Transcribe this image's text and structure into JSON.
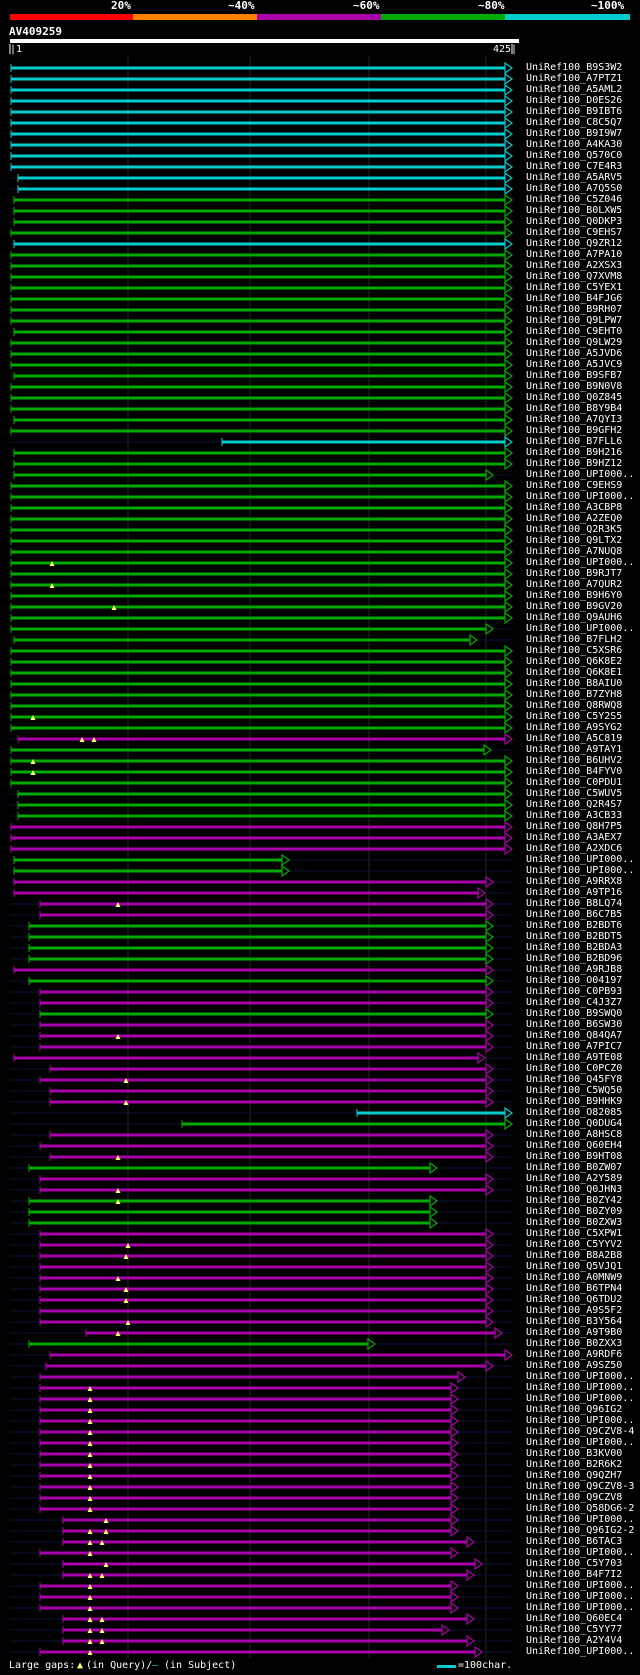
{
  "header": {
    "percent_labels": [
      "20%",
      "~40%",
      "~60%",
      "~80%",
      "~100%"
    ],
    "colors": [
      "#ff0000",
      "#ff8000",
      "#aa00aa",
      "#00aa00",
      "#00cccc"
    ]
  },
  "query": {
    "name": "AV409259",
    "start_label": "|1",
    "end_label": "425|"
  },
  "hits": [
    {
      "id": "UniRef100_B9S3W2",
      "x1": 11,
      "x2": 512,
      "c": "cyan"
    },
    {
      "id": "UniRef100_A7PTZ1",
      "x1": 11,
      "x2": 512,
      "c": "cyan"
    },
    {
      "id": "UniRef100_A5AML2",
      "x1": 11,
      "x2": 512,
      "c": "cyan"
    },
    {
      "id": "UniRef100_D0ES26",
      "x1": 11,
      "x2": 512,
      "c": "cyan"
    },
    {
      "id": "UniRef100_B9IBT6",
      "x1": 11,
      "x2": 512,
      "c": "cyan"
    },
    {
      "id": "UniRef100_C8C5Q7",
      "x1": 11,
      "x2": 512,
      "c": "cyan"
    },
    {
      "id": "UniRef100_B9I9W7",
      "x1": 11,
      "x2": 512,
      "c": "cyan"
    },
    {
      "id": "UniRef100_A4KA30",
      "x1": 11,
      "x2": 512,
      "c": "cyan"
    },
    {
      "id": "UniRef100_Q570C0",
      "x1": 11,
      "x2": 512,
      "c": "cyan"
    },
    {
      "id": "UniRef100_C7E4R3",
      "x1": 11,
      "x2": 512,
      "c": "cyan"
    },
    {
      "id": "UniRef100_A5ARV5",
      "x1": 18,
      "x2": 512,
      "c": "cyan"
    },
    {
      "id": "UniRef100_A7Q5S0",
      "x1": 18,
      "x2": 512,
      "c": "cyan"
    },
    {
      "id": "UniRef100_C5Z046",
      "x1": 14,
      "x2": 512,
      "c": "green"
    },
    {
      "id": "UniRef100_B0LXW5",
      "x1": 14,
      "x2": 512,
      "c": "green"
    },
    {
      "id": "UniRef100_Q0DKP3",
      "x1": 14,
      "x2": 512,
      "c": "green"
    },
    {
      "id": "UniRef100_C9EHS7",
      "x1": 11,
      "x2": 512,
      "c": "green"
    },
    {
      "id": "UniRef100_Q9ZR12",
      "x1": 14,
      "x2": 512,
      "c": "cyan"
    },
    {
      "id": "UniRef100_A7PA10",
      "x1": 11,
      "x2": 512,
      "c": "green"
    },
    {
      "id": "UniRef100_A2XSX3",
      "x1": 11,
      "x2": 512,
      "c": "green"
    },
    {
      "id": "UniRef100_Q7XVM8",
      "x1": 11,
      "x2": 512,
      "c": "green"
    },
    {
      "id": "UniRef100_C5YEX1",
      "x1": 11,
      "x2": 512,
      "c": "green"
    },
    {
      "id": "UniRef100_B4FJG6",
      "x1": 11,
      "x2": 512,
      "c": "green"
    },
    {
      "id": "UniRef100_B9RH07",
      "x1": 11,
      "x2": 512,
      "c": "green"
    },
    {
      "id": "UniRef100_Q9LPW7",
      "x1": 11,
      "x2": 512,
      "c": "green"
    },
    {
      "id": "UniRef100_C9EHT0",
      "x1": 14,
      "x2": 512,
      "c": "green"
    },
    {
      "id": "UniRef100_Q9LW29",
      "x1": 11,
      "x2": 512,
      "c": "green"
    },
    {
      "id": "UniRef100_A5JVD6",
      "x1": 11,
      "x2": 512,
      "c": "green"
    },
    {
      "id": "UniRef100_A5JVC9",
      "x1": 11,
      "x2": 512,
      "c": "green"
    },
    {
      "id": "UniRef100_B9SFB7",
      "x1": 14,
      "x2": 512,
      "c": "green"
    },
    {
      "id": "UniRef100_B9N0V8",
      "x1": 11,
      "x2": 512,
      "c": "green"
    },
    {
      "id": "UniRef100_Q0Z845",
      "x1": 11,
      "x2": 512,
      "c": "green"
    },
    {
      "id": "UniRef100_B8Y9B4",
      "x1": 11,
      "x2": 512,
      "c": "green"
    },
    {
      "id": "UniRef100_A7QYI3",
      "x1": 14,
      "x2": 512,
      "c": "green"
    },
    {
      "id": "UniRef100_B9GFH2",
      "x1": 11,
      "x2": 512,
      "c": "green"
    },
    {
      "id": "UniRef100_B7FLL6",
      "x1": 222,
      "x2": 512,
      "c": "cyan"
    },
    {
      "id": "UniRef100_B9H216",
      "x1": 14,
      "x2": 512,
      "c": "green"
    },
    {
      "id": "UniRef100_B9HZ12",
      "x1": 14,
      "x2": 512,
      "c": "green"
    },
    {
      "id": "UniRef100_UPI000..",
      "x1": 14,
      "x2": 493,
      "c": "green"
    },
    {
      "id": "UniRef100_C9EHS9",
      "x1": 11,
      "x2": 512,
      "c": "green"
    },
    {
      "id": "UniRef100_UPI000..",
      "x1": 11,
      "x2": 512,
      "c": "green"
    },
    {
      "id": "UniRef100_A3CBP8",
      "x1": 11,
      "x2": 512,
      "c": "green"
    },
    {
      "id": "UniRef100_A2ZEQ0",
      "x1": 11,
      "x2": 512,
      "c": "green"
    },
    {
      "id": "UniRef100_Q2R3K5",
      "x1": 11,
      "x2": 512,
      "c": "green"
    },
    {
      "id": "UniRef100_Q9LTX2",
      "x1": 11,
      "x2": 512,
      "c": "green"
    },
    {
      "id": "UniRef100_A7NUQ8",
      "x1": 11,
      "x2": 512,
      "c": "green"
    },
    {
      "id": "UniRef100_UPI000..",
      "x1": 11,
      "x2": 512,
      "c": "green",
      "gap": 52
    },
    {
      "id": "UniRef100_B9RJT7",
      "x1": 11,
      "x2": 512,
      "c": "green"
    },
    {
      "id": "UniRef100_A7QUR2",
      "x1": 11,
      "x2": 512,
      "c": "green",
      "gap": 52
    },
    {
      "id": "UniRef100_B9H6Y0",
      "x1": 11,
      "x2": 512,
      "c": "green"
    },
    {
      "id": "UniRef100_B9GV20",
      "x1": 11,
      "x2": 512,
      "c": "green",
      "gap": 114
    },
    {
      "id": "UniRef100_Q9AUH6",
      "x1": 11,
      "x2": 512,
      "c": "green"
    },
    {
      "id": "UniRef100_UPI000..",
      "x1": 11,
      "x2": 493,
      "c": "green"
    },
    {
      "id": "UniRef100_B7FLH2",
      "x1": 14,
      "x2": 477,
      "c": "green"
    },
    {
      "id": "UniRef100_C5XSR6",
      "x1": 11,
      "x2": 512,
      "c": "green"
    },
    {
      "id": "UniRef100_Q6K8E2",
      "x1": 11,
      "x2": 512,
      "c": "green"
    },
    {
      "id": "UniRef100_Q6K8E1",
      "x1": 11,
      "x2": 512,
      "c": "green"
    },
    {
      "id": "UniRef100_B8AIU0",
      "x1": 11,
      "x2": 512,
      "c": "green"
    },
    {
      "id": "UniRef100_B7ZYH8",
      "x1": 11,
      "x2": 512,
      "c": "green"
    },
    {
      "id": "UniRef100_Q8RWQ8",
      "x1": 11,
      "x2": 512,
      "c": "green"
    },
    {
      "id": "UniRef100_C5Y2S5",
      "x1": 11,
      "x2": 512,
      "c": "green",
      "gap": 33
    },
    {
      "id": "UniRef100_A9SYG2",
      "x1": 11,
      "x2": 512,
      "c": "green"
    },
    {
      "id": "UniRef100_A5C819",
      "x1": 18,
      "x2": 512,
      "c": "purple",
      "gap": 82,
      "gap2": 94
    },
    {
      "id": "UniRef100_A9TAY1",
      "x1": 11,
      "x2": 491,
      "c": "green"
    },
    {
      "id": "UniRef100_B6UHV2",
      "x1": 11,
      "x2": 512,
      "c": "green",
      "gap": 33
    },
    {
      "id": "UniRef100_B4FYV0",
      "x1": 11,
      "x2": 512,
      "c": "green",
      "gap": 33
    },
    {
      "id": "UniRef100_C0PDU1",
      "x1": 11,
      "x2": 512,
      "c": "green"
    },
    {
      "id": "UniRef100_C5WUV5",
      "x1": 18,
      "x2": 512,
      "c": "green"
    },
    {
      "id": "UniRef100_Q2R4S7",
      "x1": 18,
      "x2": 512,
      "c": "green"
    },
    {
      "id": "UniRef100_A3CB33",
      "x1": 18,
      "x2": 512,
      "c": "green"
    },
    {
      "id": "UniRef100_Q8H7P5",
      "x1": 11,
      "x2": 512,
      "c": "purple"
    },
    {
      "id": "UniRef100_A3AEX7",
      "x1": 11,
      "x2": 512,
      "c": "purple"
    },
    {
      "id": "UniRef100_A2XDC6",
      "x1": 11,
      "x2": 512,
      "c": "purple"
    },
    {
      "id": "UniRef100_UPI000..",
      "x1": 14,
      "x2": 289,
      "c": "green"
    },
    {
      "id": "UniRef100_UPI000..",
      "x1": 14,
      "x2": 289,
      "c": "green"
    },
    {
      "id": "UniRef100_A9RRX8",
      "x1": 14,
      "x2": 493,
      "c": "purple"
    },
    {
      "id": "UniRef100_A9TP16",
      "x1": 14,
      "x2": 485,
      "c": "purple"
    },
    {
      "id": "UniRef100_B8LQ74",
      "x1": 40,
      "x2": 493,
      "c": "purple",
      "gap": 118
    },
    {
      "id": "UniRef100_B6C7B5",
      "x1": 40,
      "x2": 493,
      "c": "purple"
    },
    {
      "id": "UniRef100_B2BDT6",
      "x1": 29,
      "x2": 493,
      "c": "green"
    },
    {
      "id": "UniRef100_B2BDT5",
      "x1": 29,
      "x2": 493,
      "c": "green"
    },
    {
      "id": "UniRef100_B2BDA3",
      "x1": 29,
      "x2": 493,
      "c": "green"
    },
    {
      "id": "UniRef100_B2BD96",
      "x1": 29,
      "x2": 493,
      "c": "green"
    },
    {
      "id": "UniRef100_A9RJB8",
      "x1": 14,
      "x2": 493,
      "c": "purple"
    },
    {
      "id": "UniRef100_O04197",
      "x1": 29,
      "x2": 493,
      "c": "green"
    },
    {
      "id": "UniRef100_C0PB93",
      "x1": 40,
      "x2": 493,
      "c": "purple"
    },
    {
      "id": "UniRef100_C4J3Z7",
      "x1": 40,
      "x2": 493,
      "c": "purple"
    },
    {
      "id": "UniRef100_B9SWQ0",
      "x1": 40,
      "x2": 493,
      "c": "green"
    },
    {
      "id": "UniRef100_B6SW30",
      "x1": 40,
      "x2": 493,
      "c": "purple"
    },
    {
      "id": "UniRef100_Q84QA7",
      "x1": 40,
      "x2": 493,
      "c": "purple",
      "gap": 118
    },
    {
      "id": "UniRef100_A7PIC7",
      "x1": 40,
      "x2": 493,
      "c": "purple"
    },
    {
      "id": "UniRef100_A9TE08",
      "x1": 14,
      "x2": 485,
      "c": "purple"
    },
    {
      "id": "UniRef100_C0PCZ0",
      "x1": 50,
      "x2": 493,
      "c": "purple"
    },
    {
      "id": "UniRef100_Q45FY8",
      "x1": 40,
      "x2": 493,
      "c": "purple",
      "gap": 126
    },
    {
      "id": "UniRef100_C5WQ50",
      "x1": 50,
      "x2": 493,
      "c": "purple"
    },
    {
      "id": "UniRef100_B9HHK9",
      "x1": 50,
      "x2": 493,
      "c": "purple",
      "gap": 126
    },
    {
      "id": "UniRef100_O82085",
      "x1": 357,
      "x2": 512,
      "c": "cyan"
    },
    {
      "id": "UniRef100_Q0DUG4",
      "x1": 182,
      "x2": 512,
      "c": "green"
    },
    {
      "id": "UniRef100_A8HSC8",
      "x1": 50,
      "x2": 493,
      "c": "purple"
    },
    {
      "id": "UniRef100_Q60EH4",
      "x1": 40,
      "x2": 493,
      "c": "purple"
    },
    {
      "id": "UniRef100_B9HT08",
      "x1": 50,
      "x2": 493,
      "c": "purple",
      "gap": 118
    },
    {
      "id": "UniRef100_B0ZW07",
      "x1": 29,
      "x2": 437,
      "c": "green"
    },
    {
      "id": "UniRef100_A2Y589",
      "x1": 40,
      "x2": 493,
      "c": "purple"
    },
    {
      "id": "UniRef100_Q0JHN3",
      "x1": 40,
      "x2": 493,
      "c": "purple",
      "gap": 118
    },
    {
      "id": "UniRef100_B0ZY42",
      "x1": 29,
      "x2": 437,
      "c": "green",
      "gap": 118
    },
    {
      "id": "UniRef100_B0ZY09",
      "x1": 29,
      "x2": 437,
      "c": "green"
    },
    {
      "id": "UniRef100_B0ZXW3",
      "x1": 29,
      "x2": 437,
      "c": "green"
    },
    {
      "id": "UniRef100_C5XPW1",
      "x1": 40,
      "x2": 493,
      "c": "purple"
    },
    {
      "id": "UniRef100_C5YYV2",
      "x1": 40,
      "x2": 493,
      "c": "purple",
      "gap": 128
    },
    {
      "id": "UniRef100_B8A2B8",
      "x1": 40,
      "x2": 493,
      "c": "purple",
      "gap": 126
    },
    {
      "id": "UniRef100_Q5VJQ1",
      "x1": 40,
      "x2": 493,
      "c": "purple"
    },
    {
      "id": "UniRef100_A0MNW9",
      "x1": 40,
      "x2": 493,
      "c": "purple",
      "gap": 118
    },
    {
      "id": "UniRef100_B6TPN4",
      "x1": 40,
      "x2": 493,
      "c": "purple",
      "gap": 126
    },
    {
      "id": "UniRef100_Q6TDU2",
      "x1": 40,
      "x2": 493,
      "c": "purple",
      "gap": 126
    },
    {
      "id": "UniRef100_A9S5F2",
      "x1": 40,
      "x2": 493,
      "c": "purple"
    },
    {
      "id": "UniRef100_B3Y564",
      "x1": 40,
      "x2": 493,
      "c": "purple",
      "gap": 128
    },
    {
      "id": "UniRef100_A9T9B0",
      "x1": 86,
      "x2": 502,
      "c": "purple",
      "gap": 118
    },
    {
      "id": "UniRef100_B0ZXX3",
      "x1": 29,
      "x2": 375,
      "c": "green"
    },
    {
      "id": "UniRef100_A9RDF6",
      "x1": 50,
      "x2": 512,
      "c": "purple"
    },
    {
      "id": "UniRef100_A9SZ50",
      "x1": 46,
      "x2": 493,
      "c": "purple"
    },
    {
      "id": "UniRef100_UPI000..",
      "x1": 40,
      "x2": 465,
      "c": "purple"
    },
    {
      "id": "UniRef100_UPI000..",
      "x1": 40,
      "x2": 458,
      "c": "purple",
      "gap": 90
    },
    {
      "id": "UniRef100_UPI000..",
      "x1": 40,
      "x2": 458,
      "c": "purple",
      "gap": 90
    },
    {
      "id": "UniRef100_Q96IG2",
      "x1": 40,
      "x2": 458,
      "c": "purple",
      "gap": 90
    },
    {
      "id": "UniRef100_UPI000..",
      "x1": 40,
      "x2": 458,
      "c": "purple",
      "gap": 90
    },
    {
      "id": "UniRef100_Q9CZV8-4",
      "x1": 40,
      "x2": 458,
      "c": "purple",
      "gap": 90
    },
    {
      "id": "UniRef100_UPI000..",
      "x1": 40,
      "x2": 458,
      "c": "purple",
      "gap": 90
    },
    {
      "id": "UniRef100_B3KV00",
      "x1": 40,
      "x2": 458,
      "c": "purple",
      "gap": 90
    },
    {
      "id": "UniRef100_B2R6K2",
      "x1": 40,
      "x2": 458,
      "c": "purple",
      "gap": 90
    },
    {
      "id": "UniRef100_Q9QZH7",
      "x1": 40,
      "x2": 458,
      "c": "purple",
      "gap": 90
    },
    {
      "id": "UniRef100_Q9CZV8-3",
      "x1": 40,
      "x2": 458,
      "c": "purple",
      "gap": 90
    },
    {
      "id": "UniRef100_Q9CZV8",
      "x1": 40,
      "x2": 458,
      "c": "purple",
      "gap": 90
    },
    {
      "id": "UniRef100_Q58DG6-2",
      "x1": 40,
      "x2": 458,
      "c": "purple",
      "gap": 90
    },
    {
      "id": "UniRef100_UPI000..",
      "x1": 63,
      "x2": 458,
      "c": "purple",
      "gap": 106
    },
    {
      "id": "UniRef100_Q96IG2-2",
      "x1": 63,
      "x2": 458,
      "c": "purple",
      "gap": 90,
      "gap2": 106
    },
    {
      "id": "UniRef100_B6TAC3",
      "x1": 63,
      "x2": 474,
      "c": "purple",
      "gap": 90,
      "gap2": 102
    },
    {
      "id": "UniRef100_UPI000..",
      "x1": 40,
      "x2": 458,
      "c": "purple",
      "gap": 90
    },
    {
      "id": "UniRef100_C5Y703",
      "x1": 63,
      "x2": 482,
      "c": "purple",
      "gap": 106
    },
    {
      "id": "UniRef100_B4F7I2",
      "x1": 63,
      "x2": 474,
      "c": "purple",
      "gap": 90,
      "gap2": 102
    },
    {
      "id": "UniRef100_UPI000..",
      "x1": 40,
      "x2": 458,
      "c": "purple",
      "gap": 90
    },
    {
      "id": "UniRef100_UPI000..",
      "x1": 40,
      "x2": 458,
      "c": "purple",
      "gap": 90
    },
    {
      "id": "UniRef100_UPI000..",
      "x1": 40,
      "x2": 458,
      "c": "purple",
      "gap": 90
    },
    {
      "id": "UniRef100_Q60EC4",
      "x1": 63,
      "x2": 474,
      "c": "purple",
      "gap": 90,
      "gap2": 102
    },
    {
      "id": "UniRef100_C5YY77",
      "x1": 63,
      "x2": 449,
      "c": "purple",
      "gap": 90,
      "gap2": 102
    },
    {
      "id": "UniRef100_A2Y4V4",
      "x1": 63,
      "x2": 474,
      "c": "purple",
      "gap": 90,
      "gap2": 102
    },
    {
      "id": "UniRef100_UPI000..",
      "x1": 40,
      "x2": 482,
      "c": "purple",
      "gap": 90
    }
  ],
  "legend": {
    "large_gaps": "Large gaps:",
    "in_query": "(in Query)/",
    "in_subject": "(in Subject)",
    "scale": "=100char."
  },
  "line_colors": {
    "cyan": "#00cccc",
    "green": "#00aa00",
    "purple": "#aa00aa"
  }
}
